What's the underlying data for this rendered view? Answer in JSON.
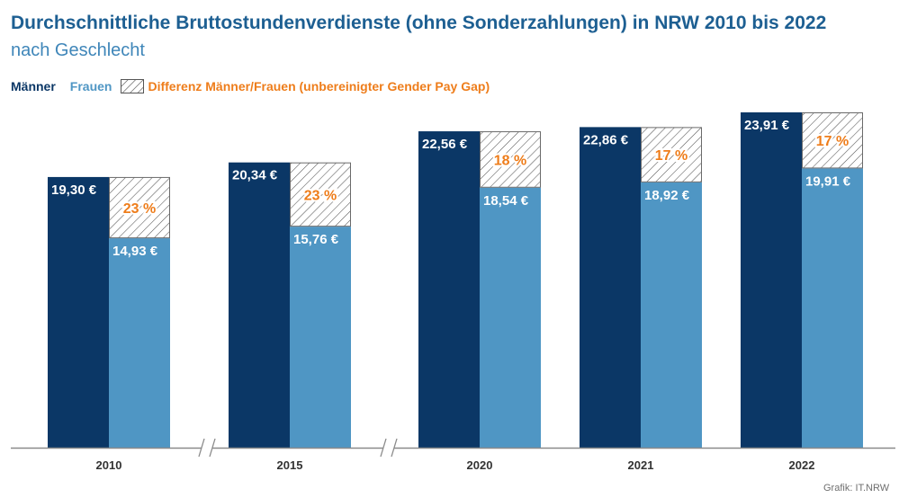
{
  "title": "Durchschnittliche Bruttostundenverdienste (ohne Sonderzahlungen) in NRW 2010 bis 2022",
  "subtitle": "nach Geschlecht",
  "legend": {
    "men": "Männer",
    "women": "Frauen",
    "difference": "Differenz Männer/Frauen (unbereinigter Gender Pay Gap)"
  },
  "source": "Grafik: IT.NRW",
  "colors": {
    "men": "#0b3766",
    "women": "#4f96c4",
    "gap_text": "#ee7d1b",
    "title": "#1d5f92",
    "subtitle": "#3f86b9"
  },
  "chart_data": {
    "type": "bar",
    "categories": [
      "2010",
      "2015",
      "2020",
      "2021",
      "2022"
    ],
    "series": [
      {
        "name": "Männer",
        "values": [
          19.3,
          20.34,
          22.56,
          22.86,
          23.91
        ],
        "labels": [
          "19,30 €",
          "20,34 €",
          "22,56 €",
          "22,86 €",
          "23,91 €"
        ]
      },
      {
        "name": "Frauen",
        "values": [
          14.93,
          15.76,
          18.54,
          18.92,
          19.91
        ],
        "labels": [
          "14,93 €",
          "15,76 €",
          "18,54 €",
          "18,92 €",
          "19,91 €"
        ]
      }
    ],
    "gender_pay_gap": {
      "name": "Differenz Männer/Frauen (unbereinigter Gender Pay Gap)",
      "values": [
        23,
        23,
        18,
        17,
        17
      ],
      "labels": [
        "23 %",
        "23 %",
        "18 %",
        "17 %",
        "17 %"
      ]
    },
    "ylim": [
      0,
      24
    ],
    "axis_breaks_after": [
      "2010",
      "2015"
    ],
    "grid": false,
    "legend_position": "top-left"
  }
}
